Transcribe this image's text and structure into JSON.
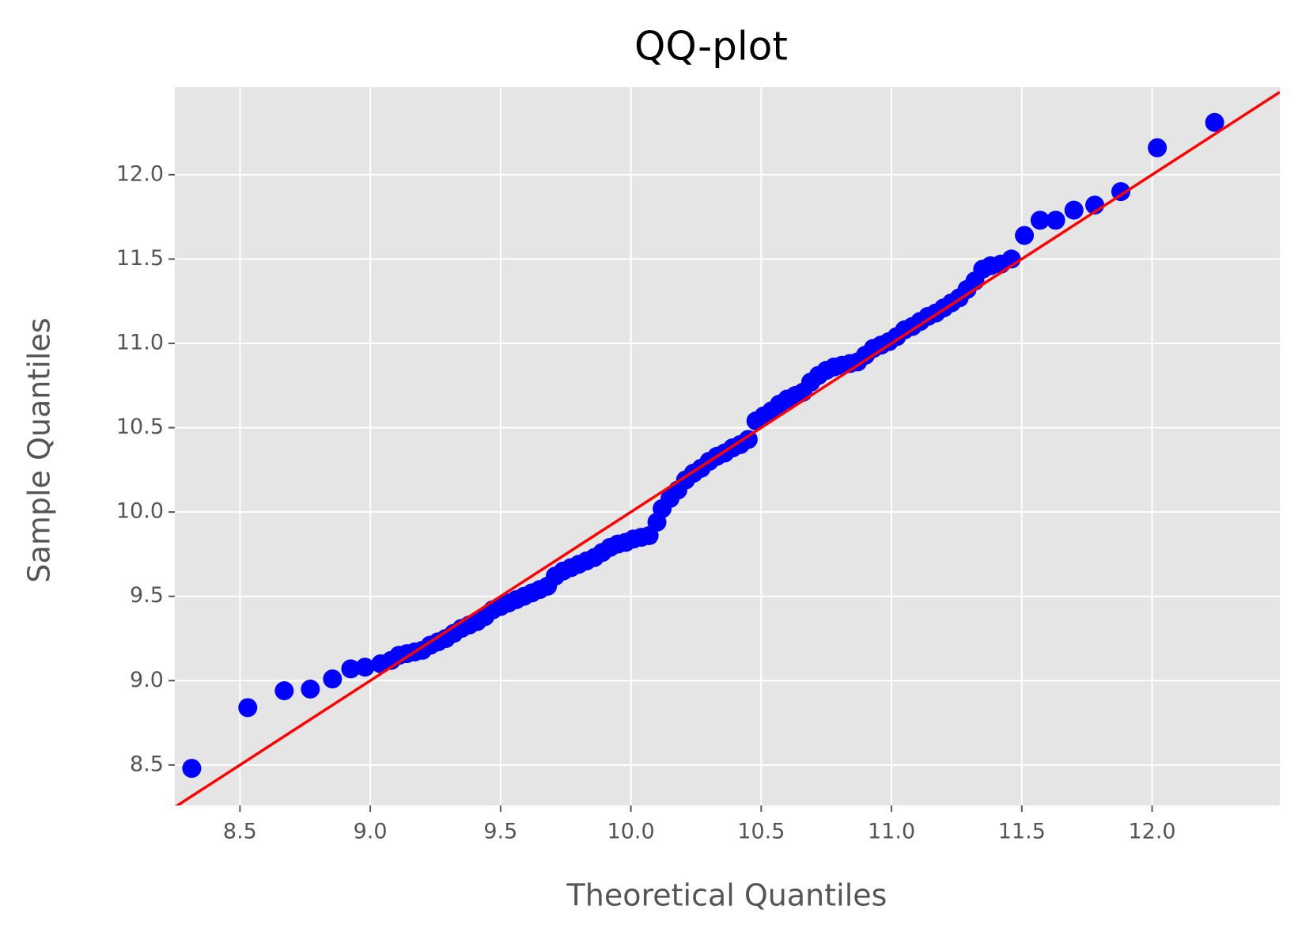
{
  "chart_data": {
    "type": "scatter",
    "title": "QQ-plot",
    "x_label": "Theoretical Quantiles",
    "y_label": "Sample Quantiles",
    "x": [
      8.315,
      8.53,
      8.67,
      8.77,
      8.855,
      8.925,
      8.98,
      9.04,
      9.08,
      9.11,
      9.14,
      9.17,
      9.2,
      9.23,
      9.26,
      9.29,
      9.32,
      9.35,
      9.38,
      9.41,
      9.44,
      9.47,
      9.5,
      9.53,
      9.56,
      9.59,
      9.62,
      9.65,
      9.68,
      9.71,
      9.74,
      9.77,
      9.8,
      9.83,
      9.86,
      9.89,
      9.92,
      9.95,
      9.98,
      10.01,
      10.04,
      10.07,
      10.1,
      10.12,
      10.15,
      10.18,
      10.21,
      10.24,
      10.27,
      10.3,
      10.33,
      10.36,
      10.39,
      10.42,
      10.45,
      10.48,
      10.51,
      10.54,
      10.57,
      10.6,
      10.63,
      10.66,
      10.69,
      10.72,
      10.75,
      10.78,
      10.81,
      10.84,
      10.87,
      10.9,
      10.93,
      10.96,
      10.99,
      11.02,
      11.05,
      11.08,
      11.11,
      11.14,
      11.17,
      11.2,
      11.23,
      11.26,
      11.29,
      11.32,
      11.35,
      11.38,
      11.42,
      11.46,
      11.51,
      11.57,
      11.63,
      11.7,
      11.78,
      11.88,
      12.02,
      12.24
    ],
    "values": [
      8.48,
      8.84,
      8.94,
      8.95,
      9.01,
      9.07,
      9.08,
      9.1,
      9.12,
      9.15,
      9.16,
      9.17,
      9.18,
      9.21,
      9.23,
      9.25,
      9.28,
      9.31,
      9.33,
      9.35,
      9.38,
      9.42,
      9.44,
      9.46,
      9.48,
      9.5,
      9.52,
      9.54,
      9.56,
      9.62,
      9.65,
      9.67,
      9.69,
      9.71,
      9.73,
      9.76,
      9.79,
      9.81,
      9.82,
      9.84,
      9.85,
      9.86,
      9.94,
      10.02,
      10.08,
      10.13,
      10.19,
      10.23,
      10.26,
      10.3,
      10.33,
      10.35,
      10.38,
      10.4,
      10.43,
      10.54,
      10.57,
      10.6,
      10.64,
      10.67,
      10.69,
      10.71,
      10.77,
      10.81,
      10.84,
      10.86,
      10.87,
      10.88,
      10.89,
      10.93,
      10.97,
      10.99,
      11.01,
      11.04,
      11.08,
      11.1,
      11.13,
      11.16,
      11.18,
      11.21,
      11.24,
      11.27,
      11.32,
      11.37,
      11.44,
      11.46,
      11.47,
      11.5,
      11.64,
      11.73,
      11.73,
      11.79,
      11.82,
      11.9,
      12.16,
      12.31
    ],
    "color": "#0000ff",
    "reference_line": {
      "x": [
        8.25,
        12.49
      ],
      "y": [
        8.25,
        12.49
      ],
      "color": "#ff0000"
    },
    "xlim": [
      8.25,
      12.49
    ],
    "ylim": [
      8.26,
      12.52
    ],
    "xticks": [
      {
        "value": 8.5,
        "label": "8.5"
      },
      {
        "value": 9,
        "label": "9.0"
      },
      {
        "value": 9.5,
        "label": "9.5"
      },
      {
        "value": 10,
        "label": "10.0"
      },
      {
        "value": 10.5,
        "label": "10.5"
      },
      {
        "value": 11,
        "label": "11.0"
      },
      {
        "value": 11.5,
        "label": "11.5"
      },
      {
        "value": 12,
        "label": "12.0"
      }
    ],
    "yticks": [
      {
        "value": 8.5,
        "label": "8.5"
      },
      {
        "value": 9,
        "label": "9.0"
      },
      {
        "value": 9.5,
        "label": "9.5"
      },
      {
        "value": 10,
        "label": "10.0"
      },
      {
        "value": 10.5,
        "label": "10.5"
      },
      {
        "value": 11,
        "label": "11.0"
      },
      {
        "value": 11.5,
        "label": "11.5"
      },
      {
        "value": 12,
        "label": "12.0"
      }
    ],
    "grid": true
  }
}
